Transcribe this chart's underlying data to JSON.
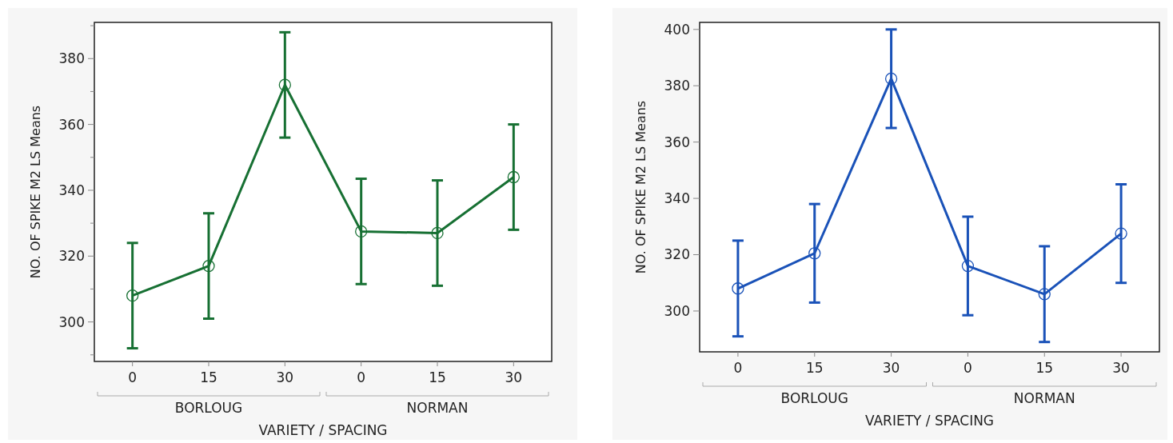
{
  "chart_data": [
    {
      "type": "line",
      "xlabel": "VARIETY / SPACING",
      "ylabel": "NO. OF SPIKE M2 LS Means",
      "categories": [
        "0",
        "15",
        "30",
        "0",
        "15",
        "30"
      ],
      "annotations": [
        "BORLOUG",
        "NORMAN"
      ],
      "series": [
        {
          "color": "#177033",
          "values": [
            308,
            317,
            372,
            327.5,
            327,
            344
          ],
          "errors": [
            16,
            16,
            16,
            16,
            16,
            16
          ]
        }
      ],
      "ylim": [
        288,
        391
      ],
      "yticks": [
        {
          "value": 290,
          "label": null
        },
        300,
        {
          "value": 310,
          "label": null
        },
        320,
        {
          "value": 330,
          "label": null
        },
        340,
        {
          "value": 350,
          "label": null
        },
        360,
        {
          "value": 370,
          "label": null
        },
        380,
        {
          "value": 390,
          "label": null
        }
      ],
      "marker": "circle",
      "grid": false
    },
    {
      "type": "line",
      "xlabel": "VARIETY / SPACING",
      "ylabel": "NO. OF SPIKE M2 LS Means",
      "categories": [
        "0",
        "15",
        "30",
        "0",
        "15",
        "30"
      ],
      "annotations": [
        "BORLOUG",
        "NORMAN"
      ],
      "series": [
        {
          "color": "#1a52b8",
          "values": [
            308,
            320.5,
            382.5,
            316,
            306,
            327.5
          ],
          "errors": [
            17,
            17.5,
            17.5,
            17.5,
            17,
            17.5
          ]
        }
      ],
      "ylim": [
        285.5,
        402.5
      ],
      "yticks": [
        300,
        320,
        340,
        360,
        380,
        400
      ],
      "marker": "circle",
      "grid": false
    }
  ]
}
